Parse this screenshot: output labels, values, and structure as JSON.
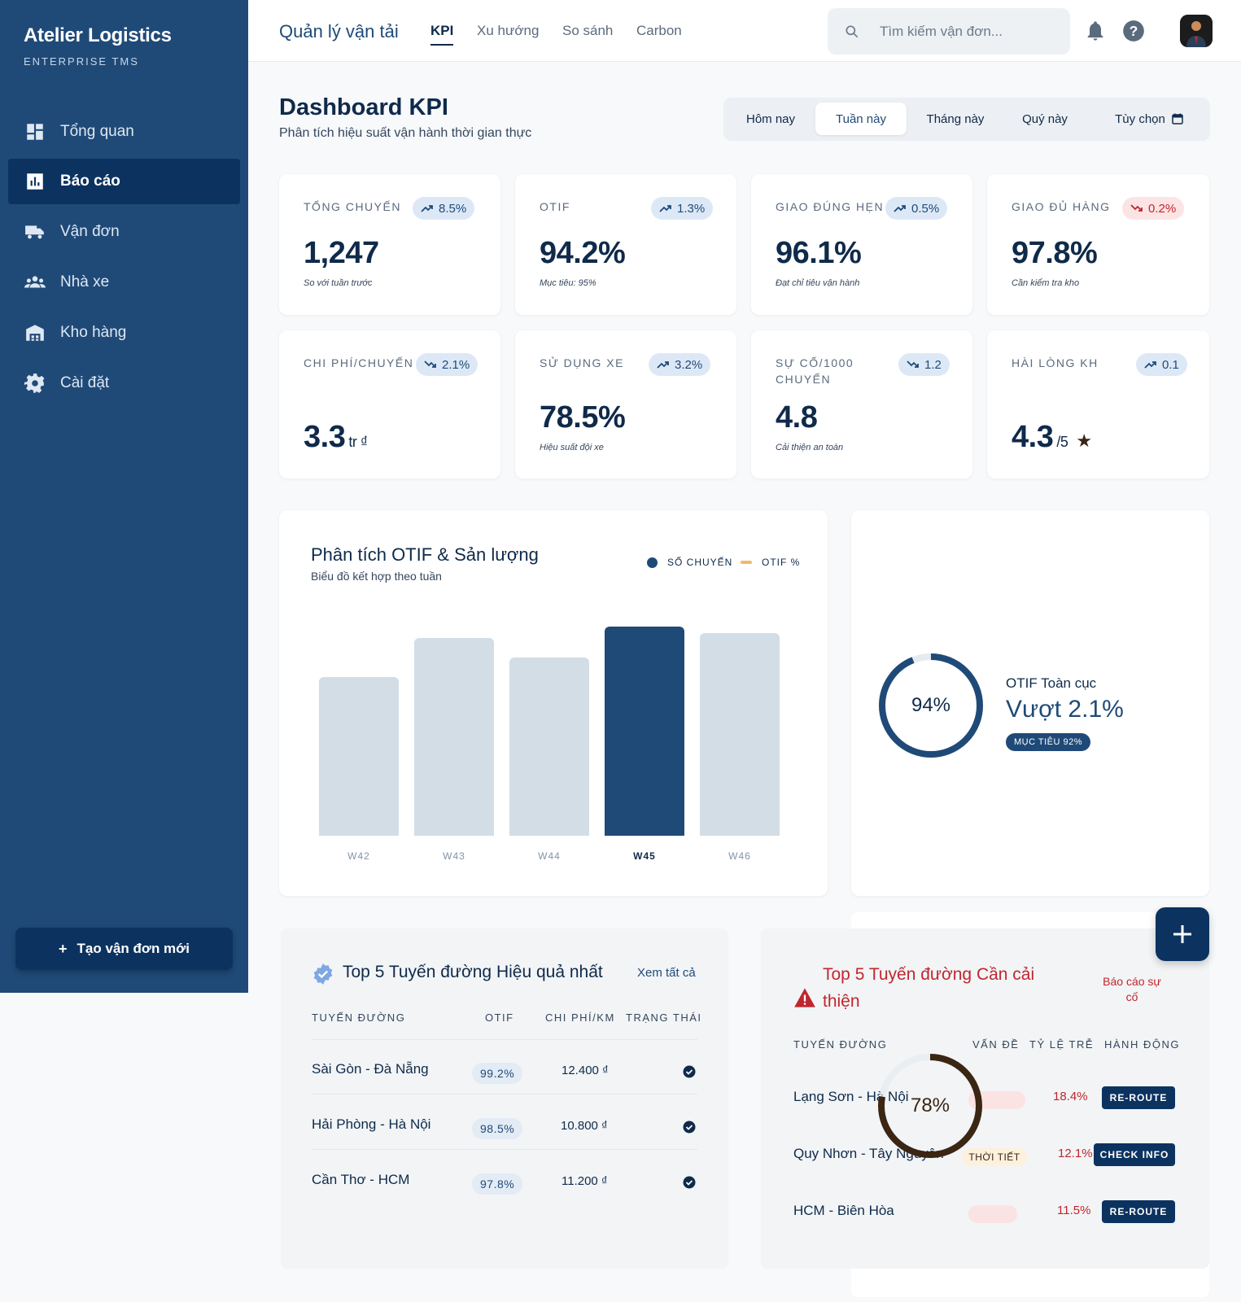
{
  "sidebar": {
    "brand": "Atelier Logistics",
    "brand_sub": "ENTERPRISE TMS",
    "items": [
      {
        "label": "Tổng quan",
        "icon": "dashboard-icon"
      },
      {
        "label": "Báo cáo",
        "icon": "bar-chart-icon",
        "active": true
      },
      {
        "label": "Vận đơn",
        "icon": "truck-icon"
      },
      {
        "label": "Nhà xe",
        "icon": "group-icon"
      },
      {
        "label": "Kho hàng",
        "icon": "warehouse-icon"
      },
      {
        "label": "Cài đặt",
        "icon": "gear-icon"
      }
    ],
    "new_button": "Tạo vận đơn mới"
  },
  "header": {
    "title": "Quản lý vận tải",
    "tabs": [
      "KPI",
      "Xu hướng",
      "So sánh",
      "Carbon"
    ],
    "active_tab": "KPI",
    "search_placeholder": "Tìm kiếm vận đơn..."
  },
  "page": {
    "title": "Dashboard KPI",
    "subtitle": "Phân tích hiệu suất vận hành thời gian thực",
    "periods": [
      "Hôm nay",
      "Tuần này",
      "Tháng này",
      "Quý này",
      "Tùy chọn"
    ],
    "active_period": "Tuần này"
  },
  "kpis": [
    {
      "label": "TỔNG CHUYẾN",
      "trend": "8.5%",
      "direction": "up",
      "value": "1,247",
      "note": "So với tuần trước"
    },
    {
      "label": "OTIF",
      "trend": "1.3%",
      "direction": "up",
      "value": "94.2%",
      "note": "Mục tiêu: 95%"
    },
    {
      "label": "GIAO ĐÚNG HẸN",
      "trend": "0.5%",
      "direction": "up",
      "value": "96.1%",
      "note": "Đạt chỉ tiêu vận hành"
    },
    {
      "label": "GIAO ĐỦ HÀNG",
      "trend": "0.2%",
      "direction": "down",
      "value": "97.8%",
      "note": "Cần kiểm tra kho"
    },
    {
      "label": "CHI PHÍ/CHUYẾN",
      "trend": "2.1%",
      "direction": "down",
      "value": "3.3",
      "unit": "tr ₫"
    },
    {
      "label": "SỬ DỤNG XE",
      "trend": "3.2%",
      "direction": "up",
      "value": "78.5%",
      "note": "Hiệu suất đội xe"
    },
    {
      "label": "SỰ CỐ/1000 CHUYẾN",
      "trend": "1.2",
      "direction": "down",
      "value": "4.8",
      "note": "Cải thiện an toàn"
    },
    {
      "label": "HÀI LÒNG KH",
      "trend": "0.1",
      "direction": "up",
      "value": "4.3",
      "unit": "/5",
      "star": "★"
    }
  ],
  "chart_data": {
    "type": "bar",
    "title": "Phân tích OTIF & Sản lượng",
    "subtitle": "Biểu đồ kết hợp theo tuần",
    "legend": [
      "SỐ CHUYẾN",
      "OTIF %"
    ],
    "legend_position": "top-right",
    "categories": [
      "W42",
      "W43",
      "W44",
      "W45",
      "W46"
    ],
    "values": [
      200,
      250,
      225,
      264,
      256
    ],
    "highlight": "W45",
    "ylim": [
      0,
      264
    ],
    "grid": false,
    "colors": {
      "bar": "#d3dde6",
      "highlight": "#1f4a78",
      "otif": "#f4b86a"
    }
  },
  "otif_global": {
    "percent_label": "94%",
    "percent": 94,
    "title": "OTIF Toàn cục",
    "headline": "Vượt 2.1%",
    "tag": "MỤC TIÊU 92%"
  },
  "top_routes": {
    "title": "Top 5 Tuyến đường Hiệu quả nhất",
    "view_all": "Xem tất cả",
    "columns": [
      "TUYẾN ĐƯỜNG",
      "OTIF",
      "CHI PHÍ/KM",
      "TRẠNG THÁI"
    ],
    "rows": [
      {
        "route": "Sài Gòn - Đà Nẵng",
        "otif": "99.2%",
        "cost": "12.400 ₫"
      },
      {
        "route": "Hải Phòng - Hà Nội",
        "otif": "98.5%",
        "cost": "10.800 ₫"
      },
      {
        "route": "Cần Thơ - HCM",
        "otif": "97.8%",
        "cost": "11.200 ₫"
      }
    ]
  },
  "weak_routes": {
    "title_line1": "Top 5 Tuyến đường Cần cải",
    "title_line2": "thiện",
    "report_line1": "Báo cáo sự",
    "report_line2": "cố",
    "columns": [
      "TUYẾN ĐƯỜNG",
      "VẤN ĐỀ",
      "TỶ LỆ TRỄ",
      "HÀNH ĐỘNG"
    ],
    "overlay_percent_label": "78%",
    "overlay_percent": 78,
    "rows": [
      {
        "route": "Lạng Sơn - Hà Nội",
        "issue": "",
        "late": "18.4%",
        "action": "RE-ROUTE"
      },
      {
        "route": "Quy Nhơn - Tây Nguyên",
        "issue": "THỜI TIẾT",
        "late": "12.1%",
        "action": "CHECK INFO"
      },
      {
        "route": "HCM - Biên Hòa",
        "issue": "",
        "late": "11.5%",
        "action": "RE-ROUTE"
      }
    ]
  }
}
